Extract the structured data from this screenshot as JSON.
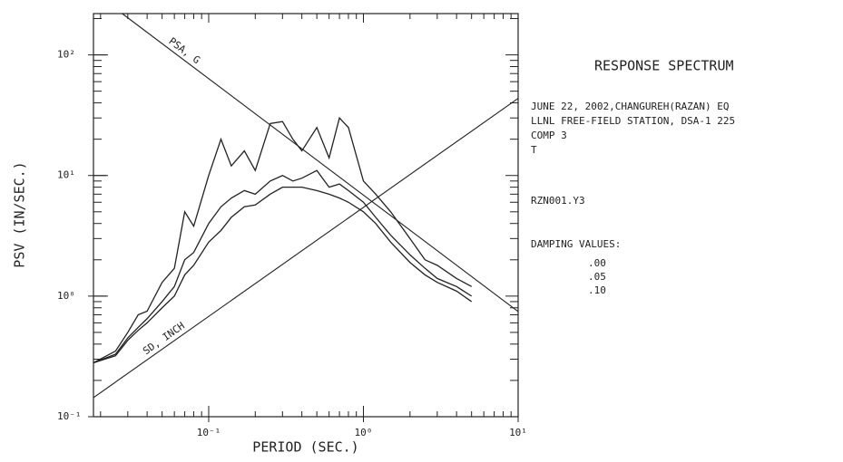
{
  "chart_data": {
    "type": "line",
    "title": "RESPONSE SPECTRUM",
    "info": [
      "JUNE 22, 2002,CHANGUREH(RAZAN) EQ",
      "LLNL FREE-FIELD STATION, DSA-1 225",
      "COMP  3",
      "T",
      "RZN001.Y3"
    ],
    "legend_title": "DAMPING VALUES:",
    "x_label": "PERIOD (SEC.)",
    "y_label": "PSV (IN/SEC.)",
    "log_x": true,
    "log_y": true,
    "grid": false,
    "xlim": [
      0.018,
      10
    ],
    "ylim": [
      0.1,
      220
    ],
    "xticks": [
      {
        "value": 0.1,
        "label": "10⁻¹"
      },
      {
        "value": 1,
        "label": "10⁰"
      },
      {
        "value": 10,
        "label": "10¹"
      }
    ],
    "yticks": [
      {
        "value": 0.1,
        "label": "10⁻¹"
      },
      {
        "value": 1,
        "label": "10⁰"
      },
      {
        "value": 10,
        "label": "10¹"
      },
      {
        "value": 100,
        "label": "10²"
      }
    ],
    "x": [
      0.018,
      0.025,
      0.03,
      0.035,
      0.04,
      0.05,
      0.06,
      0.07,
      0.08,
      0.1,
      0.12,
      0.14,
      0.17,
      0.2,
      0.25,
      0.3,
      0.35,
      0.4,
      0.5,
      0.6,
      0.7,
      0.8,
      1.0,
      1.2,
      1.5,
      2,
      2.5,
      3,
      4,
      5
    ],
    "series": [
      {
        "name": ".00",
        "color": "#222",
        "values": [
          0.28,
          0.35,
          0.5,
          0.7,
          0.75,
          1.3,
          1.7,
          5,
          3.8,
          10,
          20,
          12,
          16,
          11,
          27,
          28,
          20,
          16,
          25,
          14,
          30,
          25,
          9,
          7,
          5,
          3,
          2,
          1.8,
          1.4,
          1.2
        ]
      },
      {
        "name": ".05",
        "color": "#222",
        "values": [
          0.28,
          0.33,
          0.45,
          0.55,
          0.65,
          0.9,
          1.2,
          2,
          2.3,
          4,
          5.5,
          6.5,
          7.5,
          7,
          9,
          10,
          9,
          9.5,
          11,
          8,
          8.5,
          7.5,
          6,
          4.5,
          3.2,
          2.2,
          1.7,
          1.4,
          1.2,
          1.0
        ]
      },
      {
        "name": ".10",
        "color": "#222",
        "values": [
          0.28,
          0.32,
          0.43,
          0.52,
          0.6,
          0.8,
          1.0,
          1.5,
          1.8,
          2.8,
          3.5,
          4.5,
          5.5,
          5.7,
          7,
          8,
          8,
          8,
          7.5,
          7,
          6.5,
          6,
          5,
          4,
          2.8,
          1.9,
          1.5,
          1.3,
          1.1,
          0.9
        ]
      }
    ],
    "diagonals": [
      {
        "label": "PSA, G",
        "x": [
          0.0276,
          10
        ],
        "y": [
          220,
          0.745
        ]
      },
      {
        "label": "SD, INCH",
        "x": [
          0.018,
          10
        ],
        "y": [
          0.144,
          43.6
        ]
      }
    ]
  }
}
